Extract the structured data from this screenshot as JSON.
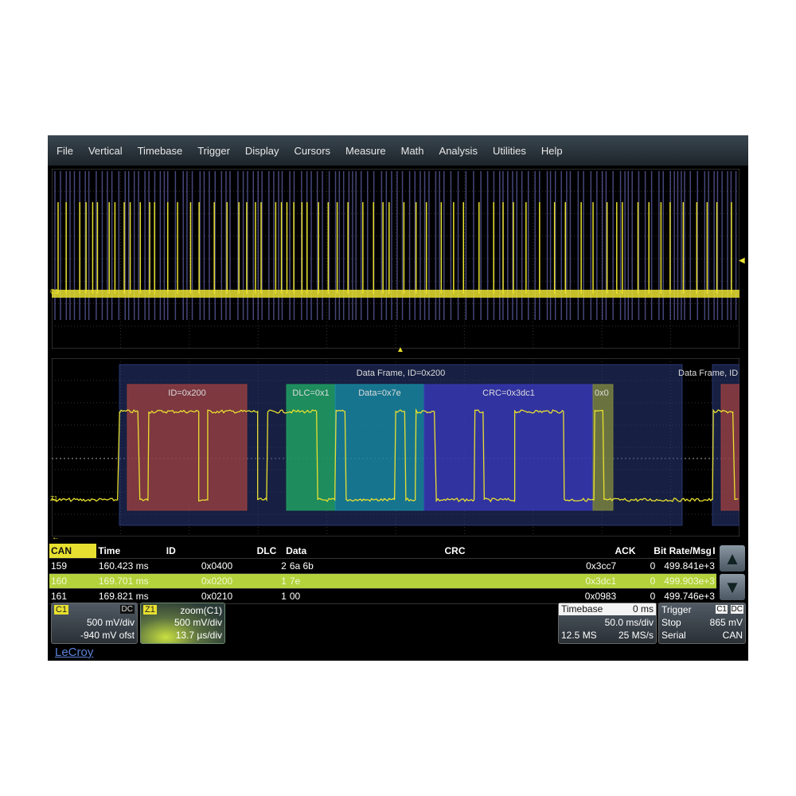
{
  "menu": [
    "File",
    "Vertical",
    "Timebase",
    "Trigger",
    "Display",
    "Cursors",
    "Measure",
    "Math",
    "Analysis",
    "Utilities",
    "Help"
  ],
  "traces": {
    "c1_label": "C1",
    "z1_label": "Z1"
  },
  "decode": {
    "frame_label": "Data Frame, ID=0x200",
    "next_frame_label": "Data Frame, ID",
    "id": "ID=0x200",
    "dlc": "DLC=0x1",
    "data": "Data=0x7e",
    "crc": "CRC=0x3dc1",
    "ack": "0x0",
    "colors": {
      "frame": "#2a3a78",
      "id": "#a04040",
      "dlc": "#20a060",
      "data": "#1890a8",
      "crc": "#3838b8",
      "ack": "#808840",
      "trace": "#e8e030",
      "overview_spike": "#8080e0"
    }
  },
  "table": {
    "headers": [
      "CAN",
      "Time",
      "ID",
      "DLC",
      "Data",
      "CRC",
      "ACK",
      "Bit Rate/Msg",
      "I"
    ],
    "rows": [
      [
        "159",
        "160.423 ms",
        "0x0400",
        "2",
        "6a 6b",
        "0x3cc7",
        "0",
        "499.841e+3"
      ],
      [
        "160",
        "169.701 ms",
        "0x0200",
        "1",
        "7e",
        "0x3dc1",
        "0",
        "499.903e+3"
      ],
      [
        "161",
        "169.821 ms",
        "0x0210",
        "1",
        "00",
        "0x0983",
        "0",
        "499.746e+3"
      ]
    ],
    "selected_row": 1
  },
  "channels": {
    "c1": {
      "tag": "C1",
      "coupling": "DC",
      "scale": "500 mV/div",
      "offset": "-940 mV ofst"
    },
    "z1": {
      "tag": "Z1",
      "source": "zoom(C1)",
      "scale": "500 mV/div",
      "time": "13.7 µs/div"
    }
  },
  "timebase": {
    "title": "Timebase",
    "delay": "0 ms",
    "scale": "50.0 ms/div",
    "samples": "12.5 MS",
    "rate": "25 MS/s"
  },
  "trigger": {
    "title": "Trigger",
    "source": "C1",
    "coupling": "DC",
    "mode": "Stop",
    "level": "865 mV",
    "type": "Serial",
    "protocol": "CAN"
  },
  "logo": "LeCroy"
}
